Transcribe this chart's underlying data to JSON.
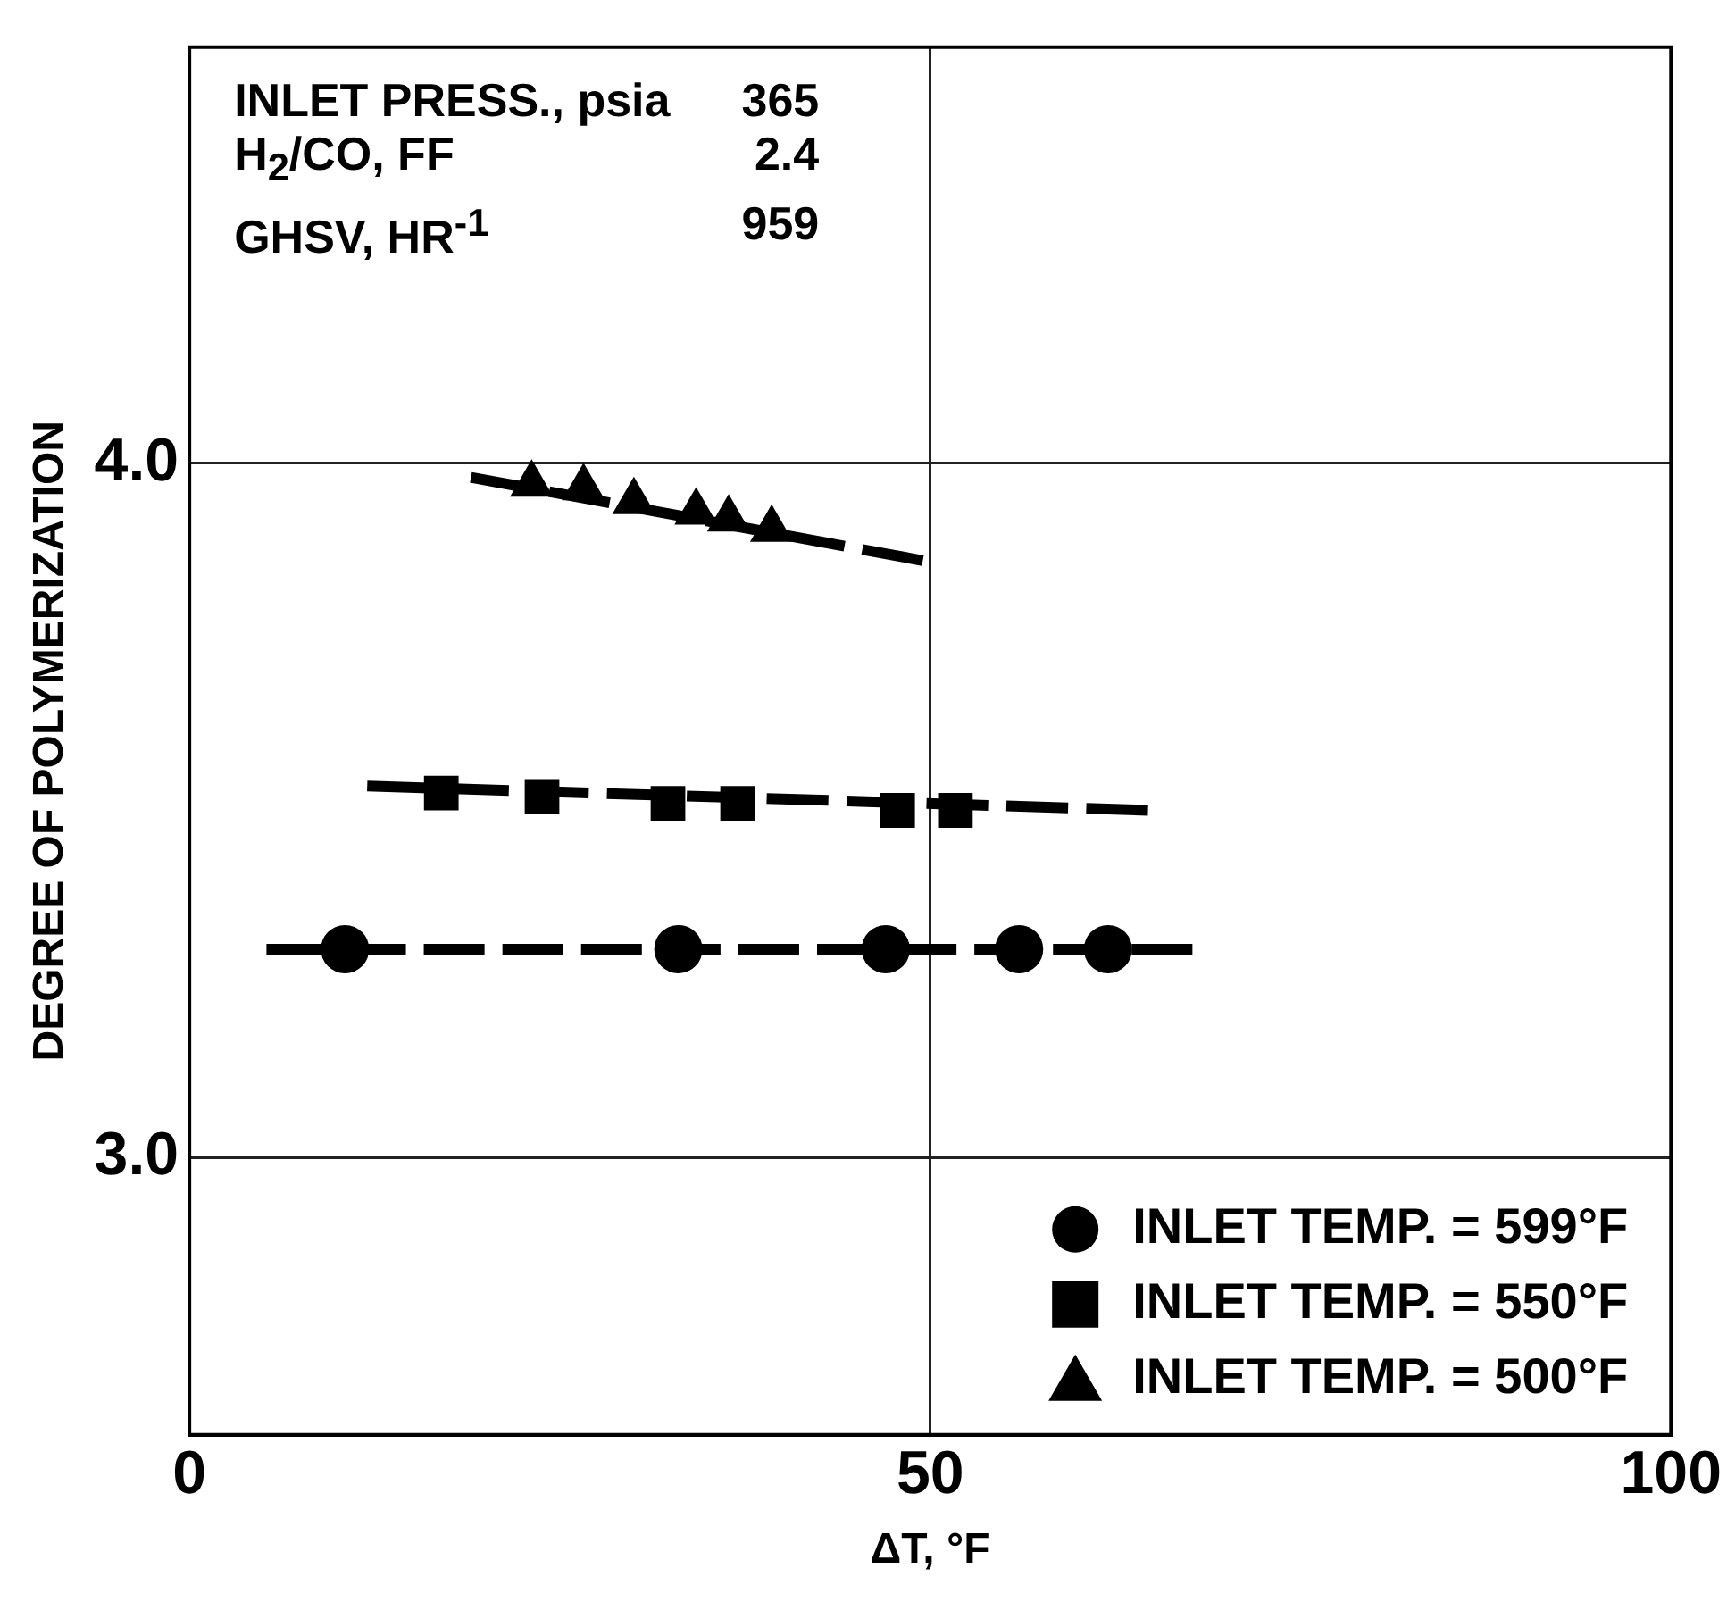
{
  "chart_data": {
    "type": "scatter",
    "xlabel": "ΔT, °F",
    "ylabel": "DEGREE OF POLYMERIZATION",
    "xlim": [
      0,
      100
    ],
    "xticks": [
      0,
      50,
      100
    ],
    "ylim": [
      2.6,
      4.6
    ],
    "yticks": [
      {
        "value": 3,
        "label": "3.0"
      },
      {
        "value": 4,
        "label": "4.0"
      }
    ],
    "grid": true,
    "legend": "bottom right",
    "annotations": [
      "INLET PRESS., psia",
      "365",
      "H$_{2}$/CO, FF",
      "2.4",
      "GHSV, HR$^{-1}$",
      "959"
    ],
    "series": [
      {
        "name": "INLET TEMP. = 599°F",
        "color": "#000000",
        "marker": "circle",
        "x": [
          10.5,
          33,
          47,
          56,
          62
        ],
        "values": [
          3.3,
          3.3,
          3.3,
          3.3,
          3.3
        ]
      },
      {
        "name": "INLET TEMP. = 550°F",
        "color": "#000000",
        "marker": "square",
        "x": [
          17,
          23.8,
          32.3,
          37,
          47.8,
          51.7
        ],
        "values": [
          3.525,
          3.52,
          3.51,
          3.51,
          3.5,
          3.5
        ]
      },
      {
        "name": "INLET TEMP. = 500°F",
        "color": "#000000",
        "marker": "triangle",
        "x": [
          23.1,
          26.6,
          30,
          34.2,
          36.4,
          39.3
        ],
        "values": [
          3.97,
          3.965,
          3.945,
          3.93,
          3.92,
          3.905
        ]
      },
      {
        "type": "line",
        "color": "#000000",
        "line_style": "dashed",
        "x": [
          5.2,
          67.7
        ],
        "values": [
          3.3,
          3.3
        ]
      },
      {
        "type": "line",
        "color": "#000000",
        "line_style": "dashed",
        "x": [
          12,
          64.7
        ],
        "values": [
          3.535,
          3.5
        ]
      },
      {
        "type": "line",
        "color": "#000000",
        "line_style": "dashed",
        "x": [
          19,
          49.5
        ],
        "values": [
          3.98,
          3.86
        ]
      }
    ]
  }
}
